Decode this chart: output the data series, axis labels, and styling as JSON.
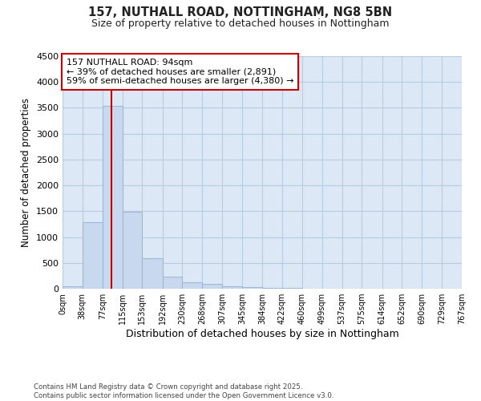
{
  "title1": "157, NUTHALL ROAD, NOTTINGHAM, NG8 5BN",
  "title2": "Size of property relative to detached houses in Nottingham",
  "xlabel": "Distribution of detached houses by size in Nottingham",
  "ylabel": "Number of detached properties",
  "annotation_line1": "157 NUTHALL ROAD: 94sqm",
  "annotation_line2": "← 39% of detached houses are smaller (2,891)",
  "annotation_line3": "59% of semi-detached houses are larger (4,380) →",
  "footer1": "Contains HM Land Registry data © Crown copyright and database right 2025.",
  "footer2": "Contains public sector information licensed under the Open Government Licence v3.0.",
  "bar_edges": [
    0,
    38,
    77,
    115,
    153,
    192,
    230,
    268,
    307,
    345,
    384,
    422,
    460,
    499,
    537,
    575,
    614,
    652,
    690,
    729,
    767
  ],
  "bar_heights": [
    50,
    1290,
    3540,
    1490,
    590,
    240,
    130,
    90,
    50,
    30,
    15,
    8,
    5,
    2,
    1,
    1,
    0,
    0,
    0,
    0
  ],
  "bar_color": "#c8d8ee",
  "bar_edge_color": "#a0b8d8",
  "vline_x": 94,
  "vline_color": "#cc0000",
  "annotation_box_color": "#cc0000",
  "ylim": [
    0,
    4500
  ],
  "yticks": [
    0,
    500,
    1000,
    1500,
    2000,
    2500,
    3000,
    3500,
    4000,
    4500
  ],
  "fig_bg_color": "#ffffff",
  "plot_bg_color": "#dce8f5",
  "grid_color": "#b8ccdf"
}
